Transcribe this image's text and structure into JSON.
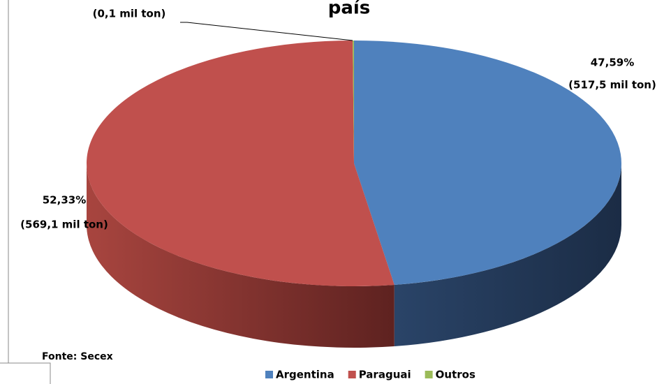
{
  "chart_data": {
    "type": "pie3d",
    "title": "país",
    "categories": [
      "Argentina",
      "Paraguai",
      "Outros"
    ],
    "values": [
      47.59,
      52.33,
      0.08
    ],
    "value_labels": [
      "47,59%",
      "52,33%",
      null
    ],
    "tonnage_labels": [
      "(517,5 mil ton)",
      "(569,1 mil ton)",
      "(0,1 mil ton)"
    ],
    "colors": [
      "#4f81bd",
      "#c0504d",
      "#9bbb59"
    ],
    "source": "Fonte: Secex",
    "legend": "bottom"
  }
}
